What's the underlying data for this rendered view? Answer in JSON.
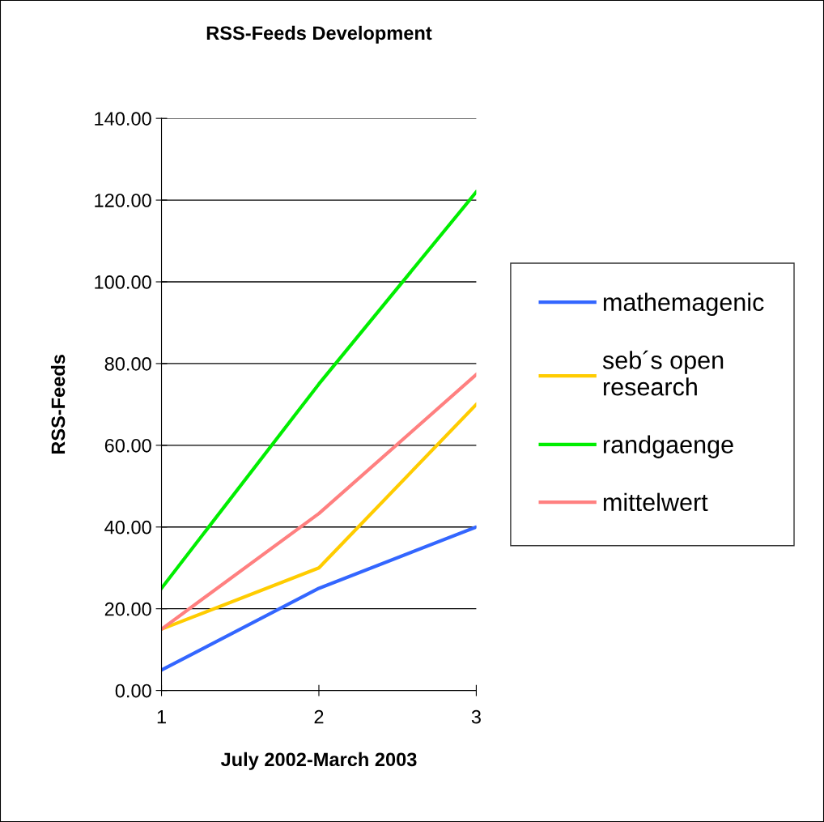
{
  "chart_data": {
    "type": "line",
    "title": "RSS-Feeds Development",
    "xlabel": "July 2002-March 2003",
    "ylabel": "RSS-Feeds",
    "x": [
      1,
      2,
      3
    ],
    "xlim": [
      1,
      3
    ],
    "xticks": [
      1,
      2,
      3
    ],
    "ylim": [
      0,
      140
    ],
    "yticks": [
      {
        "value": 0,
        "label": "0.00"
      },
      {
        "value": 20,
        "label": "20.00"
      },
      {
        "value": 40,
        "label": "40.00"
      },
      {
        "value": 60,
        "label": "60.00"
      },
      {
        "value": 80,
        "label": "80.00"
      },
      {
        "value": 100,
        "label": "100.00"
      },
      {
        "value": 120,
        "label": "120.00"
      },
      {
        "value": 140,
        "label": "140.00"
      }
    ],
    "grid": "y",
    "legend": "right",
    "marker": "none",
    "line_style": "solid",
    "series": [
      {
        "name": "mathemagenic",
        "color": "#3366ff",
        "values": [
          5,
          25,
          40
        ]
      },
      {
        "name": "seb´s open research",
        "color": "#ffcc00",
        "values": [
          15,
          30,
          70
        ]
      },
      {
        "name": "randgaenge",
        "color": "#00ee00",
        "values": [
          25,
          75,
          122
        ]
      },
      {
        "name": "mittelwert",
        "color": "#ff8080",
        "values": [
          15,
          43.3,
          77.3
        ]
      }
    ]
  }
}
